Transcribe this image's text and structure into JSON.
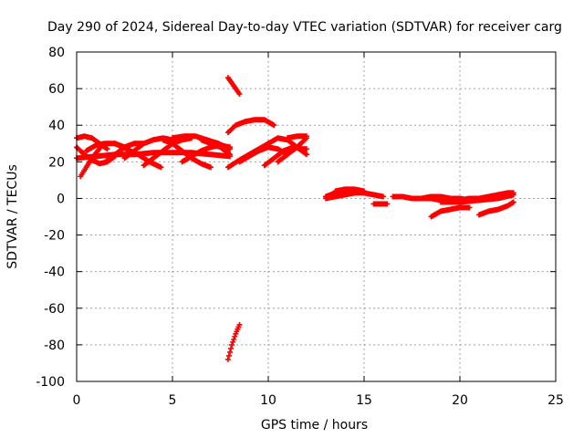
{
  "chart_data": {
    "type": "scatter",
    "title": "Day 290 of 2024, Sidereal Day-to-day VTEC variation (SDTVAR) for receiver carg",
    "xlabel": "GPS time / hours",
    "ylabel": "SDTVAR / TECUs",
    "xlim": [
      0,
      25
    ],
    "ylim": [
      -100,
      80
    ],
    "xticks": [
      0,
      5,
      10,
      15,
      20,
      25
    ],
    "yticks": [
      -100,
      -80,
      -60,
      -40,
      -20,
      0,
      20,
      40,
      60,
      80
    ],
    "grid": true,
    "marker": "plus",
    "series": [
      {
        "name": "SDTVAR",
        "color": "#ff0000",
        "tracks": [
          {
            "x": [
              0.0,
              0.4,
              0.8,
              1.2,
              1.6,
              2.0
            ],
            "y": [
              28,
              24,
              21,
              19,
              20,
              23
            ]
          },
          {
            "x": [
              0.2,
              0.5,
              0.8,
              1.1,
              1.4
            ],
            "y": [
              12,
              17,
              22,
              26,
              30
            ]
          },
          {
            "x": [
              0.0,
              0.4,
              0.8,
              1.2,
              1.6
            ],
            "y": [
              33,
              34,
              33,
              30,
              27
            ]
          },
          {
            "x": [
              0.5,
              1.0,
              1.5,
              2.0,
              2.5,
              3.0
            ],
            "y": [
              26,
              29,
              30,
              30,
              28,
              24
            ]
          },
          {
            "x": [
              1.5,
              2.0,
              2.5,
              3.0,
              3.5
            ],
            "y": [
              20,
              24,
              28,
              30,
              30
            ]
          },
          {
            "x": [
              2.0,
              2.6,
              3.2,
              3.8,
              4.4
            ],
            "y": [
              30,
              27,
              24,
              20,
              17
            ]
          },
          {
            "x": [
              2.5,
              3.0,
              3.5,
              4.0,
              4.5,
              5.0
            ],
            "y": [
              22,
              26,
              30,
              32,
              33,
              32
            ]
          },
          {
            "x": [
              3.5,
              4.0,
              4.5,
              5.0,
              5.5,
              6.0
            ],
            "y": [
              18,
              22,
              26,
              30,
              32,
              33
            ]
          },
          {
            "x": [
              4.5,
              5.0,
              5.5,
              6.0,
              6.5,
              7.0
            ],
            "y": [
              32,
              30,
              26,
              22,
              19,
              17
            ]
          },
          {
            "x": [
              5.0,
              5.6,
              6.2,
              6.8,
              7.4,
              8.0
            ],
            "y": [
              33,
              34,
              34,
              32,
              30,
              27
            ]
          },
          {
            "x": [
              5.5,
              6.0,
              6.5,
              7.0,
              7.5,
              8.0
            ],
            "y": [
              20,
              23,
              26,
              28,
              29,
              28
            ]
          },
          {
            "x": [
              6.5,
              7.0,
              7.5,
              8.0
            ],
            "y": [
              32,
              30,
              28,
              24
            ]
          },
          {
            "x": [
              0.0,
              1.0,
              2.0,
              3.0,
              4.0,
              5.0,
              6.0,
              7.0,
              8.0
            ],
            "y": [
              22,
              23,
              24,
              24,
              25,
              25,
              25,
              24,
              23
            ]
          },
          {
            "x": [
              7.9,
              8.1,
              8.3,
              8.5
            ],
            "y": [
              66,
              63,
              60,
              57
            ]
          },
          {
            "x": [
              7.9,
              8.1,
              8.3,
              8.5
            ],
            "y": [
              -88,
              -80,
              -74,
              -69
            ]
          },
          {
            "x": [
              7.9,
              8.3,
              8.8,
              9.3,
              9.8,
              10.3
            ],
            "y": [
              36,
              40,
              42,
              43,
              43,
              40
            ]
          },
          {
            "x": [
              7.9,
              8.5,
              9.0,
              9.5,
              10.0
            ],
            "y": [
              17,
              21,
              24,
              27,
              30
            ]
          },
          {
            "x": [
              8.5,
              9.0,
              9.5,
              10.0,
              10.5,
              11.0
            ],
            "y": [
              20,
              23,
              26,
              28,
              27,
              24
            ]
          },
          {
            "x": [
              9.5,
              10.0,
              10.5,
              11.0,
              11.5,
              12.0
            ],
            "y": [
              26,
              30,
              33,
              32,
              28,
              24
            ]
          },
          {
            "x": [
              9.8,
              10.3,
              10.8,
              11.3,
              11.8,
              12.0
            ],
            "y": [
              18,
              22,
              26,
              28,
              27,
              27
            ]
          },
          {
            "x": [
              10.5,
              11.0,
              11.5,
              12.0
            ],
            "y": [
              20,
              24,
              28,
              33
            ]
          },
          {
            "x": [
              11.0,
              11.5,
              12.0
            ],
            "y": [
              33,
              34,
              34
            ]
          },
          {
            "x": [
              13.0,
              13.5,
              14.0,
              14.5,
              15.0,
              15.5,
              16.0
            ],
            "y": [
              1,
              3,
              4,
              4,
              3,
              2,
              1
            ]
          },
          {
            "x": [
              13.0,
              13.5,
              14.0,
              14.5,
              15.0
            ],
            "y": [
              0,
              1,
              2,
              3,
              3
            ]
          },
          {
            "x": [
              13.5,
              14.0,
              14.5,
              15.0
            ],
            "y": [
              4,
              5,
              5,
              4
            ]
          },
          {
            "x": [
              15.5,
              16.0,
              16.2
            ],
            "y": [
              -3,
              -3,
              -3
            ]
          },
          {
            "x": [
              16.5,
              17.0,
              17.5,
              18.0,
              18.5,
              19.0,
              19.5,
              20.0
            ],
            "y": [
              1,
              1,
              0,
              0,
              0,
              -1,
              -1,
              -2
            ]
          },
          {
            "x": [
              17.5,
              18.0,
              18.5,
              19.0,
              19.5,
              20.0,
              20.5,
              21.0
            ],
            "y": [
              0,
              0,
              1,
              1,
              0,
              0,
              -1,
              -1
            ]
          },
          {
            "x": [
              18.5,
              19.0,
              19.5,
              20.0,
              20.5
            ],
            "y": [
              -10,
              -7,
              -6,
              -5,
              -5
            ]
          },
          {
            "x": [
              19.0,
              20.0,
              21.0,
              22.0,
              22.8
            ],
            "y": [
              -2,
              -2,
              -1,
              0,
              2
            ]
          },
          {
            "x": [
              20.0,
              20.5,
              21.0,
              21.5,
              22.0,
              22.5,
              22.8
            ],
            "y": [
              -1,
              0,
              0,
              1,
              2,
              3,
              3
            ]
          },
          {
            "x": [
              21.0,
              21.5,
              22.0,
              22.5,
              22.8
            ],
            "y": [
              -9,
              -7,
              -6,
              -4,
              -2
            ]
          }
        ]
      }
    ]
  }
}
